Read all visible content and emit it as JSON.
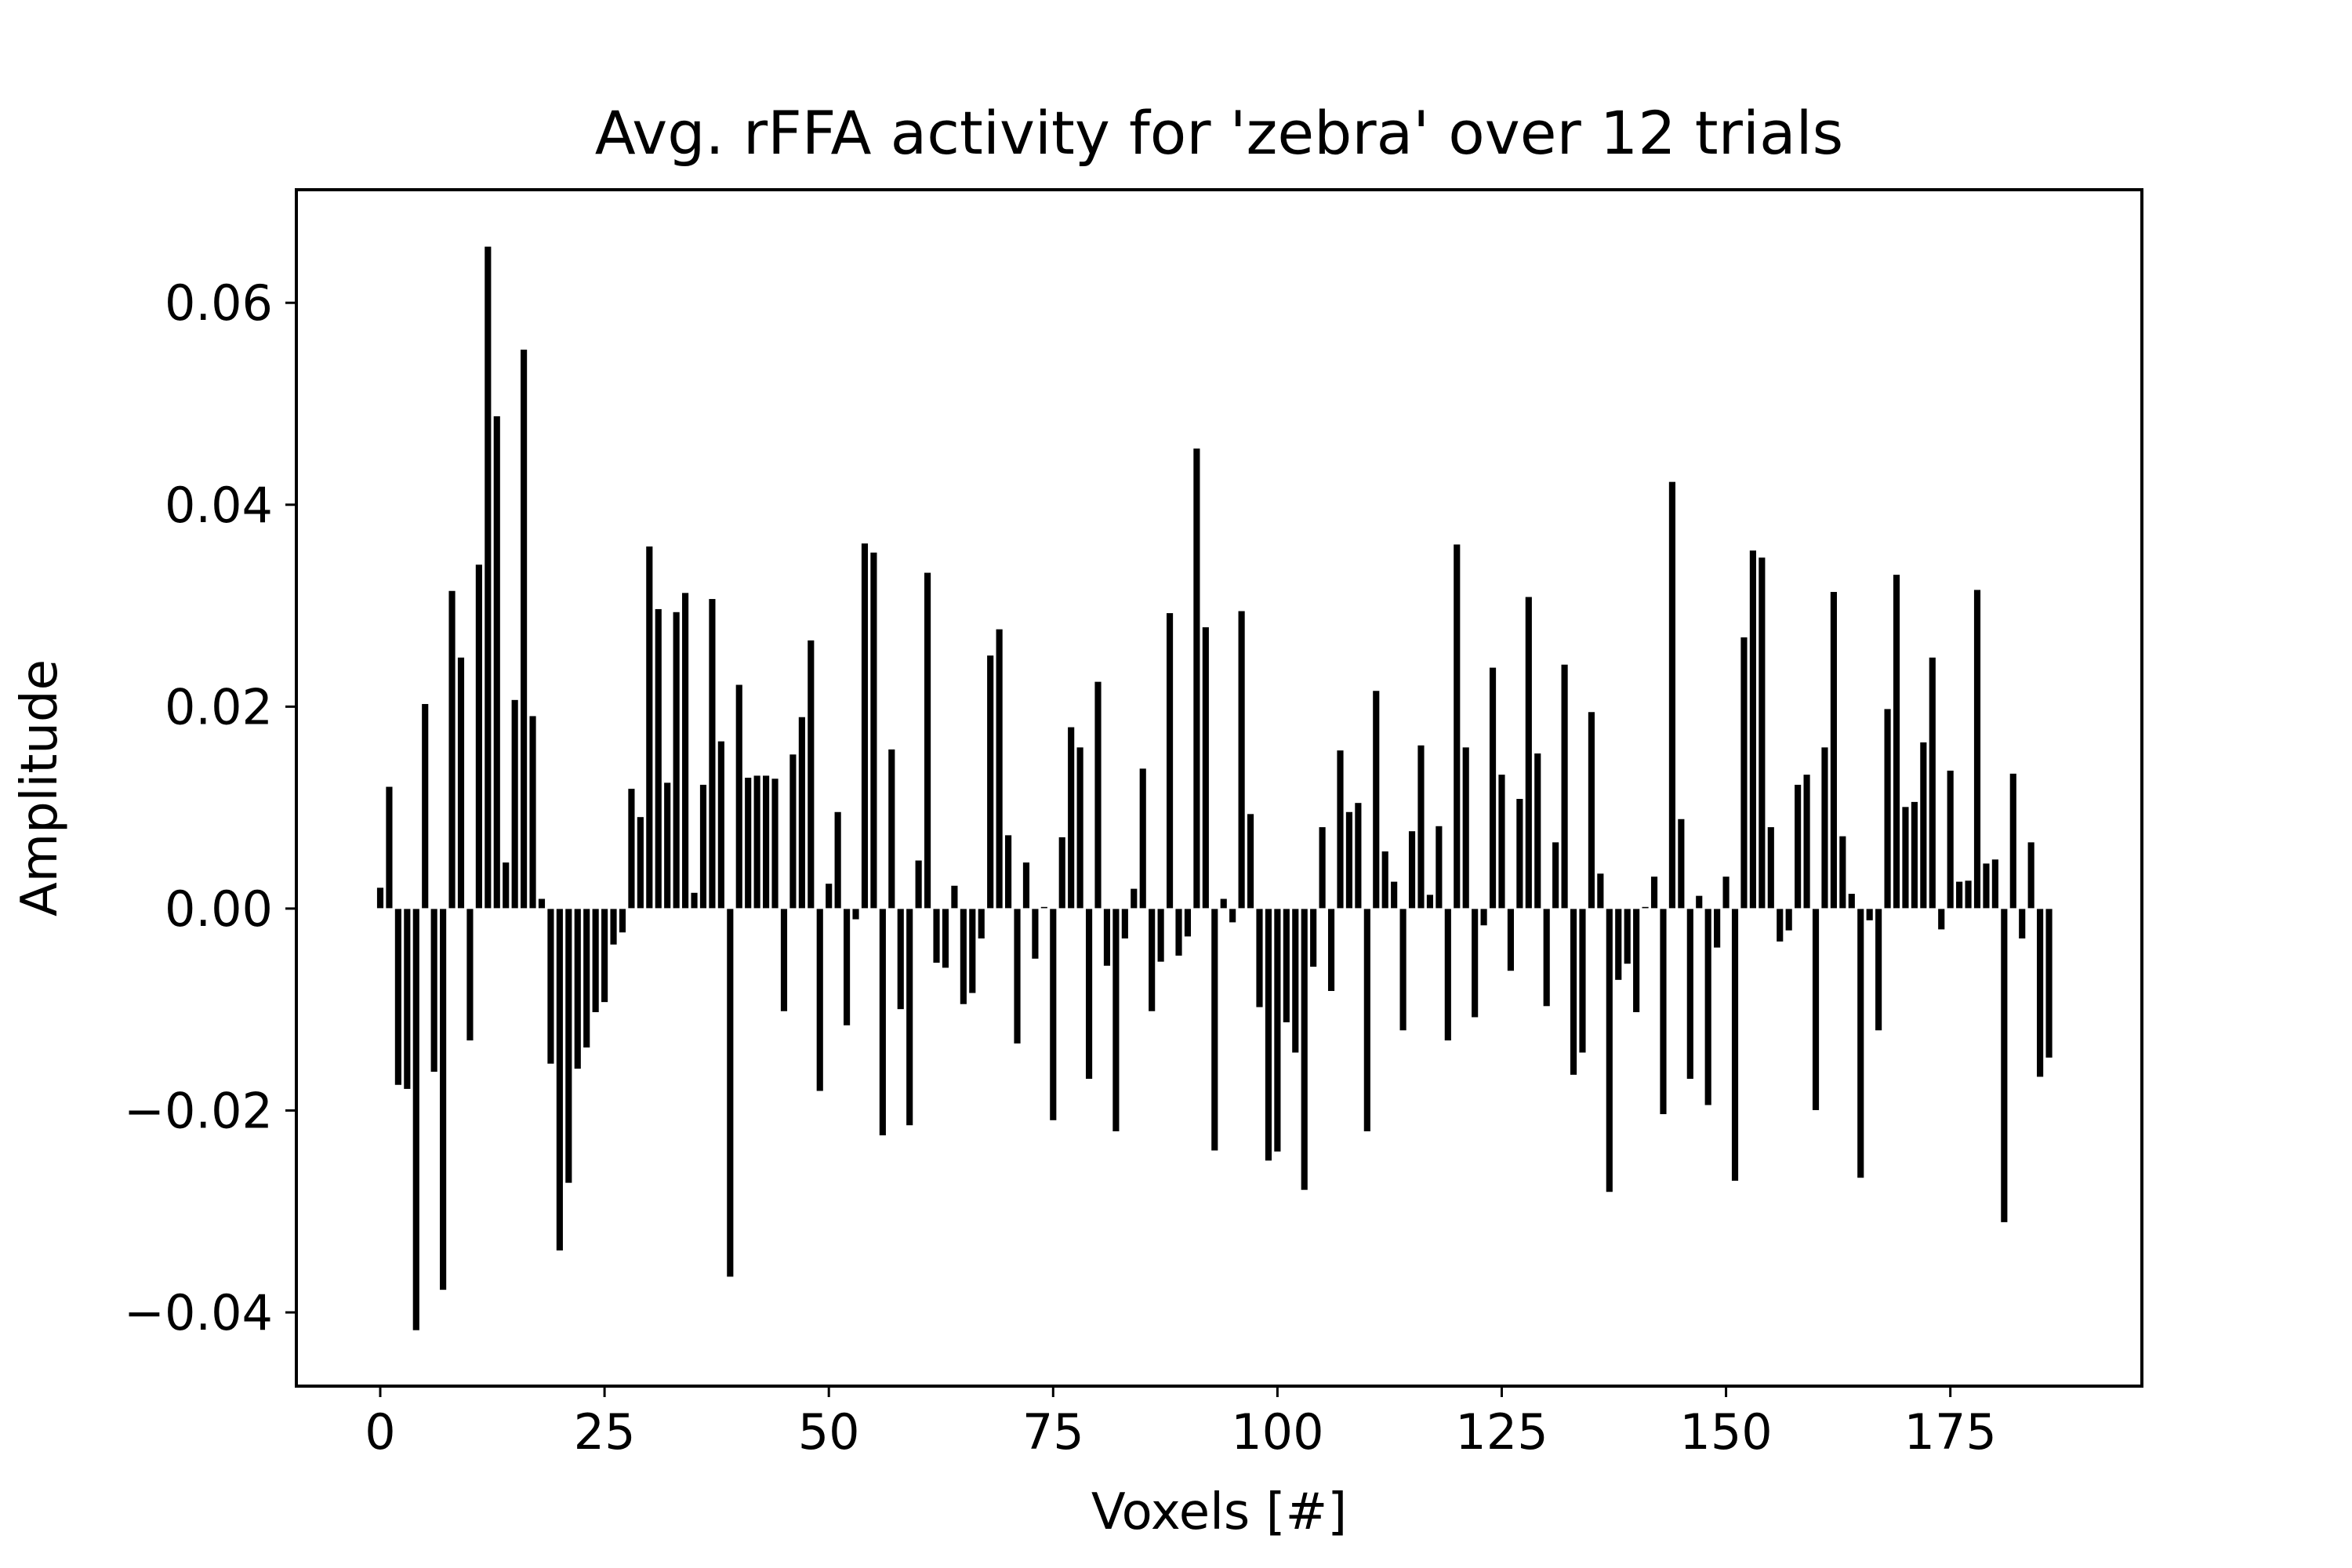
{
  "chart_data": {
    "type": "bar",
    "title": "Avg. rFFA activity for 'zebra' over 12 trials",
    "xlabel": "Voxels [#]",
    "ylabel": "Amplitude",
    "xlim": [
      -9.35,
      196.35
    ],
    "ylim": [
      -0.0473,
      0.0712
    ],
    "x_ticks": [
      0,
      25,
      50,
      75,
      100,
      125,
      150,
      175
    ],
    "x_tick_labels": [
      "0",
      "25",
      "50",
      "75",
      "100",
      "125",
      "150",
      "175"
    ],
    "y_ticks": [
      -0.04,
      -0.02,
      0.0,
      0.02,
      0.04,
      0.06
    ],
    "y_tick_labels": [
      "−0.04",
      "−0.02",
      "0.00",
      "0.02",
      "0.04",
      "0.06"
    ],
    "grid": false,
    "bar_color": "#000000",
    "bar_edge_color": "#ffffff",
    "values": [
      0.0021,
      0.0121,
      -0.0175,
      -0.0179,
      -0.0418,
      0.0203,
      -0.0162,
      -0.0378,
      0.0315,
      0.0249,
      -0.0131,
      0.0341,
      0.0656,
      0.0488,
      0.0046,
      0.0207,
      0.0554,
      0.0191,
      0.001,
      -0.0154,
      -0.0339,
      -0.0272,
      -0.0159,
      -0.0138,
      -0.0103,
      -0.0093,
      -0.0036,
      -0.0024,
      0.0119,
      0.0091,
      0.0359,
      0.0297,
      0.0125,
      0.0294,
      0.0313,
      0.0016,
      0.0123,
      0.0307,
      0.0166,
      -0.0365,
      0.0222,
      0.013,
      0.0132,
      0.0132,
      0.0129,
      -0.0102,
      0.0153,
      0.019,
      0.0266,
      -0.0181,
      0.0025,
      0.0096,
      -0.0116,
      -0.0011,
      0.0362,
      0.0353,
      -0.0225,
      0.0158,
      -0.01,
      -0.0215,
      0.0048,
      0.0333,
      -0.0054,
      -0.0059,
      0.0023,
      -0.0095,
      -0.0084,
      -0.003,
      0.0251,
      0.0277,
      0.0073,
      -0.0134,
      0.0046,
      -0.005,
      0.0002,
      -0.021,
      0.0071,
      0.018,
      0.016,
      -0.0169,
      0.0225,
      -0.0057,
      -0.0221,
      -0.003,
      0.002,
      0.0139,
      -0.0102,
      -0.0053,
      0.0293,
      -0.0047,
      -0.0028,
      0.0456,
      0.0279,
      -0.024,
      0.001,
      -0.0014,
      0.0295,
      0.0094,
      -0.0098,
      -0.025,
      -0.0241,
      -0.0113,
      -0.0143,
      -0.0279,
      -0.0058,
      0.0081,
      -0.0082,
      0.0157,
      0.0096,
      0.0105,
      -0.0221,
      0.0216,
      0.0057,
      0.0027,
      -0.0121,
      0.0077,
      0.0162,
      0.0014,
      0.0082,
      -0.0131,
      0.0361,
      0.016,
      -0.0108,
      -0.0017,
      0.0239,
      0.0133,
      -0.0062,
      0.0109,
      0.0309,
      0.0154,
      -0.0097,
      0.0066,
      0.0242,
      -0.0165,
      -0.0143,
      0.0195,
      0.0035,
      -0.0281,
      -0.0071,
      -0.0055,
      -0.0103,
      0.0002,
      0.0032,
      -0.0204,
      0.0423,
      0.0089,
      -0.0169,
      0.0013,
      -0.0195,
      -0.0039,
      0.0032,
      -0.027,
      0.0269,
      0.0355,
      0.0348,
      0.0081,
      -0.0033,
      -0.0022,
      0.0123,
      0.0133,
      -0.02,
      0.016,
      0.0314,
      0.0072,
      0.0015,
      -0.0267,
      -0.0012,
      -0.0121,
      0.0198,
      0.0331,
      0.0101,
      0.0106,
      0.0165,
      0.0249,
      -0.0021,
      0.0137,
      0.0027,
      0.0028,
      0.0316,
      0.0045,
      0.0049,
      -0.0311,
      0.0134,
      -0.003,
      0.0066,
      -0.0167,
      -0.0148
    ]
  }
}
